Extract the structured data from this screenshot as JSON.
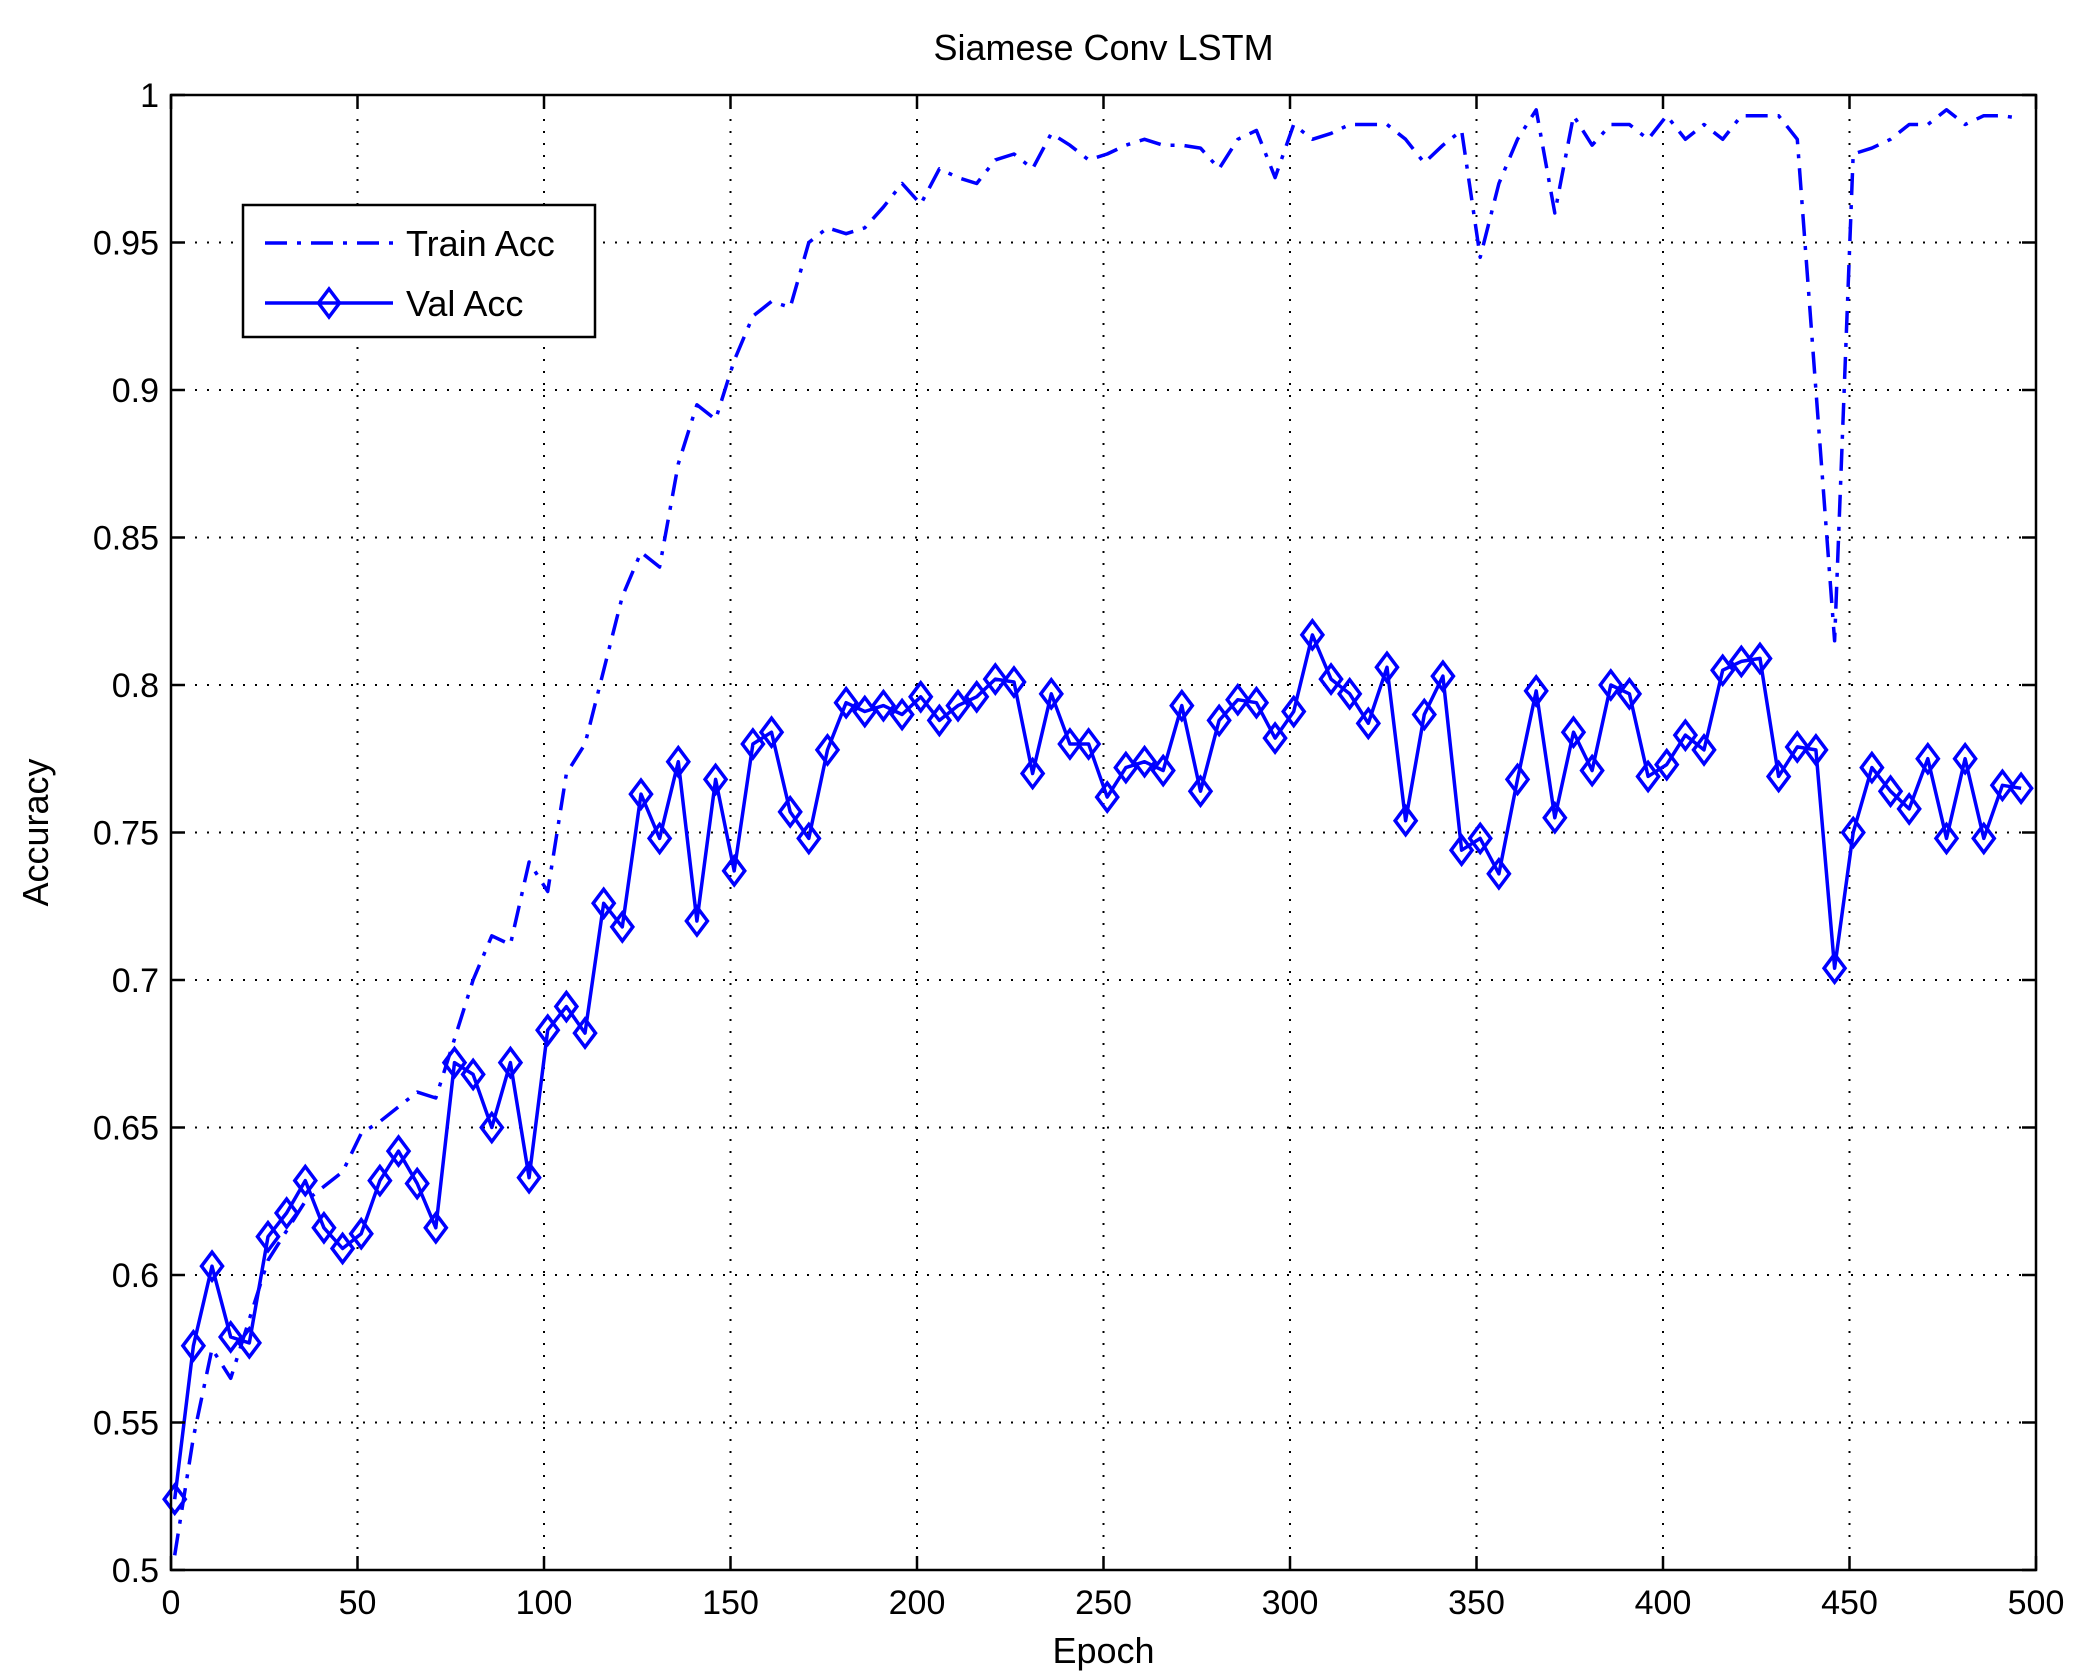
{
  "chart_data": {
    "type": "line",
    "title": "Siamese Conv LSTM",
    "xlabel": "Epoch",
    "ylabel": "Accuracy",
    "xlim": [
      0,
      500
    ],
    "ylim": [
      0.5,
      1
    ],
    "xticks": [
      "0",
      "50",
      "100",
      "150",
      "200",
      "250",
      "300",
      "350",
      "400",
      "450",
      "500"
    ],
    "yticks": [
      "0.5",
      "0.55",
      "0.6",
      "0.65",
      "0.7",
      "0.75",
      "0.8",
      "0.85",
      "0.9",
      "0.95",
      "1"
    ],
    "grid": true,
    "legend_position": "top-left",
    "color": "#0000ff",
    "series": [
      {
        "name": "Train Acc",
        "style": "dash-dot",
        "x": [
          1,
          6,
          11,
          16,
          21,
          26,
          31,
          36,
          41,
          46,
          51,
          56,
          61,
          66,
          71,
          76,
          81,
          86,
          91,
          96,
          101,
          106,
          111,
          116,
          121,
          126,
          131,
          136,
          141,
          146,
          151,
          156,
          161,
          166,
          171,
          176,
          181,
          186,
          191,
          196,
          201,
          206,
          211,
          216,
          221,
          226,
          231,
          236,
          241,
          246,
          251,
          256,
          261,
          266,
          271,
          276,
          281,
          286,
          291,
          296,
          301,
          306,
          311,
          316,
          321,
          326,
          331,
          336,
          341,
          346,
          351,
          356,
          361,
          366,
          371,
          376,
          381,
          386,
          391,
          396,
          401,
          406,
          411,
          416,
          421,
          426,
          431,
          436,
          441,
          446,
          451,
          456,
          461,
          466,
          471,
          476,
          481,
          486,
          491,
          496
        ],
        "y": [
          0.505,
          0.545,
          0.575,
          0.565,
          0.585,
          0.605,
          0.615,
          0.625,
          0.63,
          0.635,
          0.648,
          0.652,
          0.657,
          0.662,
          0.66,
          0.68,
          0.7,
          0.715,
          0.712,
          0.74,
          0.73,
          0.77,
          0.78,
          0.805,
          0.83,
          0.845,
          0.84,
          0.875,
          0.895,
          0.89,
          0.91,
          0.925,
          0.93,
          0.928,
          0.95,
          0.955,
          0.953,
          0.955,
          0.962,
          0.97,
          0.963,
          0.975,
          0.972,
          0.97,
          0.978,
          0.98,
          0.975,
          0.987,
          0.983,
          0.978,
          0.98,
          0.983,
          0.985,
          0.983,
          0.983,
          0.982,
          0.975,
          0.985,
          0.988,
          0.972,
          0.99,
          0.985,
          0.987,
          0.99,
          0.99,
          0.99,
          0.985,
          0.977,
          0.983,
          0.988,
          0.945,
          0.97,
          0.985,
          0.995,
          0.96,
          0.993,
          0.983,
          0.99,
          0.99,
          0.985,
          0.993,
          0.985,
          0.99,
          0.985,
          0.993,
          0.993,
          0.993,
          0.985,
          0.9,
          0.815,
          0.98,
          0.982,
          0.985,
          0.99,
          0.99,
          0.995,
          0.99,
          0.993,
          0.993,
          0.992
        ]
      },
      {
        "name": "Val Acc",
        "style": "solid-diamond",
        "x": [
          1,
          6,
          11,
          16,
          21,
          26,
          31,
          36,
          41,
          46,
          51,
          56,
          61,
          66,
          71,
          76,
          81,
          86,
          91,
          96,
          101,
          106,
          111,
          116,
          121,
          126,
          131,
          136,
          141,
          146,
          151,
          156,
          161,
          166,
          171,
          176,
          181,
          186,
          191,
          196,
          201,
          206,
          211,
          216,
          221,
          226,
          231,
          236,
          241,
          246,
          251,
          256,
          261,
          266,
          271,
          276,
          281,
          286,
          291,
          296,
          301,
          306,
          311,
          316,
          321,
          326,
          331,
          336,
          341,
          346,
          351,
          356,
          361,
          366,
          371,
          376,
          381,
          386,
          391,
          396,
          401,
          406,
          411,
          416,
          421,
          426,
          431,
          436,
          441,
          446,
          451,
          456,
          461,
          466,
          471,
          476,
          481,
          486,
          491,
          496
        ],
        "y": [
          0.524,
          0.576,
          0.603,
          0.579,
          0.577,
          0.613,
          0.621,
          0.632,
          0.616,
          0.609,
          0.614,
          0.632,
          0.642,
          0.631,
          0.616,
          0.672,
          0.668,
          0.65,
          0.672,
          0.633,
          0.683,
          0.691,
          0.682,
          0.726,
          0.718,
          0.763,
          0.748,
          0.774,
          0.72,
          0.768,
          0.737,
          0.78,
          0.784,
          0.757,
          0.748,
          0.778,
          0.794,
          0.791,
          0.793,
          0.79,
          0.796,
          0.788,
          0.793,
          0.796,
          0.802,
          0.801,
          0.77,
          0.797,
          0.78,
          0.78,
          0.762,
          0.772,
          0.774,
          0.771,
          0.793,
          0.764,
          0.788,
          0.795,
          0.794,
          0.782,
          0.791,
          0.817,
          0.802,
          0.797,
          0.787,
          0.806,
          0.754,
          0.79,
          0.803,
          0.744,
          0.748,
          0.736,
          0.768,
          0.798,
          0.755,
          0.784,
          0.771,
          0.8,
          0.797,
          0.769,
          0.773,
          0.783,
          0.778,
          0.805,
          0.808,
          0.809,
          0.769,
          0.779,
          0.778,
          0.704,
          0.75,
          0.772,
          0.764,
          0.758,
          0.775,
          0.748,
          0.775,
          0.748,
          0.766,
          0.765
        ]
      }
    ]
  }
}
